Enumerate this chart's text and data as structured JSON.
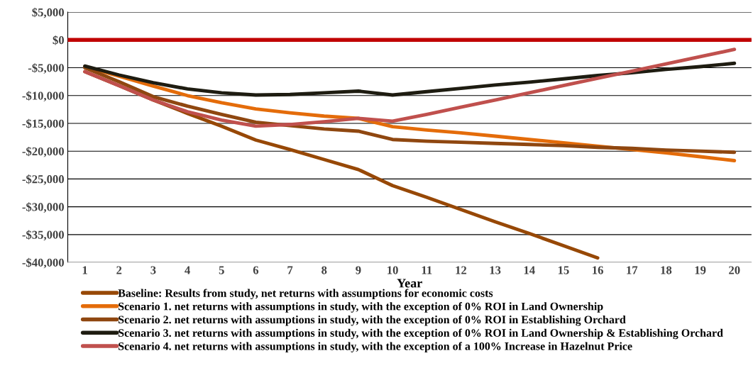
{
  "chart_data": {
    "type": "line",
    "xlabel": "Year",
    "categories": [
      "1",
      "2",
      "3",
      "4",
      "5",
      "6",
      "7",
      "8",
      "9",
      "10",
      "11",
      "12",
      "13",
      "14",
      "15",
      "16",
      "17",
      "18",
      "19",
      "20"
    ],
    "series": [
      {
        "name": "Baseline: Results from study, net returns with assumptions for economic costs",
        "color": "#974806",
        "values": [
          -5700,
          -8200,
          -10800,
          -13200,
          -15500,
          -18000,
          -19700,
          -21500,
          -23300,
          -26200,
          -28300,
          -30500,
          -32700,
          -34800,
          -37000,
          -39200,
          null,
          null,
          null,
          null
        ]
      },
      {
        "name": "Scenario 1. net returns with assumptions in study, with the exception of 0% ROI in Land Ownership",
        "color": "#e46c0a",
        "values": [
          -4800,
          -6500,
          -8300,
          -10000,
          -11300,
          -12400,
          -13100,
          -13700,
          -14100,
          -15600,
          -16200,
          -16700,
          -17300,
          -17900,
          -18500,
          -19100,
          -19700,
          -20300,
          -21000,
          -21700
        ]
      },
      {
        "name": "Scenario 2. net returns with assumptions in study, with the exception of 0% ROI in Establishing Orchard",
        "color": "#8f4710",
        "values": [
          -5000,
          -7500,
          -10200,
          -11900,
          -13400,
          -14800,
          -15400,
          -16000,
          -16400,
          -17900,
          -18200,
          -18400,
          -18600,
          -18800,
          -19000,
          -19300,
          -19500,
          -19800,
          -20000,
          -20200
        ]
      },
      {
        "name": "Scenario 3. net returns with assumptions in study, with the exception of 0% ROI in Land Ownership & Establishing Orchard",
        "color": "#1e1c11",
        "values": [
          -4700,
          -6300,
          -7700,
          -8800,
          -9500,
          -9900,
          -9800,
          -9500,
          -9200,
          -9900,
          -9300,
          -8700,
          -8100,
          -7600,
          -7000,
          -6400,
          -5900,
          -5300,
          -4800,
          -4200
        ]
      },
      {
        "name": "Scenario 4. net returns with assumptions in study, with the exception of a 100% Increase in Hazelnut Price",
        "color": "#c0504d",
        "values": [
          -5700,
          -8200,
          -10800,
          -12900,
          -14400,
          -15500,
          -15200,
          -14700,
          -14100,
          -14600,
          -13400,
          -12100,
          -10800,
          -9500,
          -8200,
          -6900,
          -5600,
          -4300,
          -3000,
          -1700
        ]
      }
    ],
    "ylim": [
      -40000,
      5000
    ],
    "yticks": [
      {
        "value": -40000,
        "label": "-$40,000"
      },
      {
        "value": -35000,
        "label": "-$35,000"
      },
      {
        "value": -30000,
        "label": "-$30,000"
      },
      {
        "value": -25000,
        "label": "-$25,000"
      },
      {
        "value": -20000,
        "label": "-$20,000"
      },
      {
        "value": -15000,
        "label": "-$15,000"
      },
      {
        "value": -10000,
        "label": "-$10,000"
      },
      {
        "value": -5000,
        "label": "-$5,000"
      },
      {
        "value": 0,
        "label": "$0"
      },
      {
        "value": 5000,
        "label": "$5,000"
      }
    ],
    "ref_lines": [
      {
        "axis": "y",
        "value": 0,
        "color": "#c00000"
      }
    ],
    "grid": "y",
    "legend": "bottom",
    "marker": "none",
    "line_style": "solid"
  }
}
